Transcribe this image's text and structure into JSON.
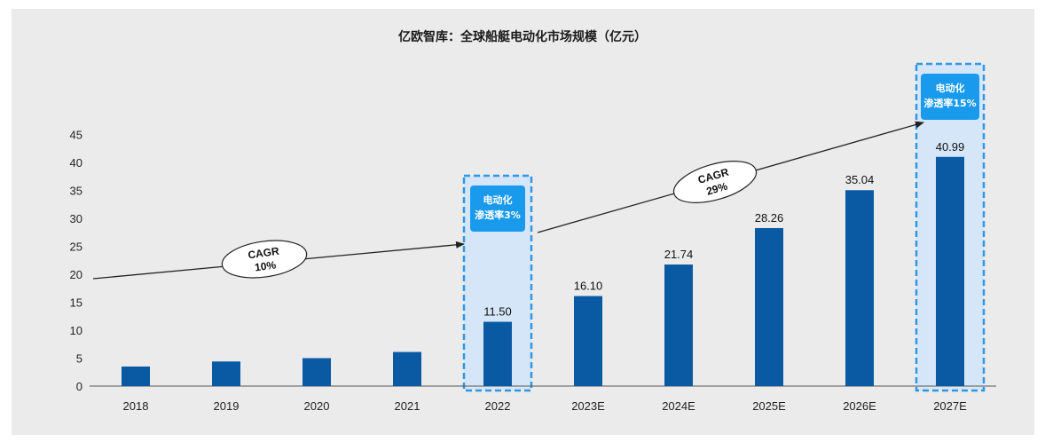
{
  "chart_data": {
    "type": "bar",
    "title": "亿欧智库：全球船艇电动化市场规模（亿元）",
    "categories": [
      "2018",
      "2019",
      "2020",
      "2021",
      "2022",
      "2023E",
      "2024E",
      "2025E",
      "2026E",
      "2027E"
    ],
    "values": [
      3.5,
      4.4,
      5.0,
      6.1,
      11.5,
      16.1,
      21.74,
      28.26,
      35.04,
      40.99
    ],
    "data_labels": [
      null,
      null,
      null,
      null,
      "11.50",
      "16.10",
      "21.74",
      "28.26",
      "35.04",
      "40.99"
    ],
    "ylim": [
      0,
      45
    ],
    "yticks": [
      0,
      5,
      10,
      15,
      20,
      25,
      30,
      35,
      40,
      45
    ],
    "xlabel": "",
    "ylabel": "",
    "grid": false,
    "bar_color": "#0a5aa3",
    "highlights": [
      {
        "category": "2022",
        "lines": [
          "电动化",
          "渗透率3%"
        ]
      },
      {
        "category": "2027E",
        "lines": [
          "电动化",
          "渗透率15%"
        ]
      }
    ],
    "annotations": [
      {
        "lines": [
          "CAGR",
          "10%"
        ]
      },
      {
        "lines": [
          "CAGR",
          "29%"
        ]
      }
    ],
    "highlight_fill": "#d6e6f9",
    "highlight_border": "#2e97e6",
    "badge_color": "#1a9aec"
  }
}
